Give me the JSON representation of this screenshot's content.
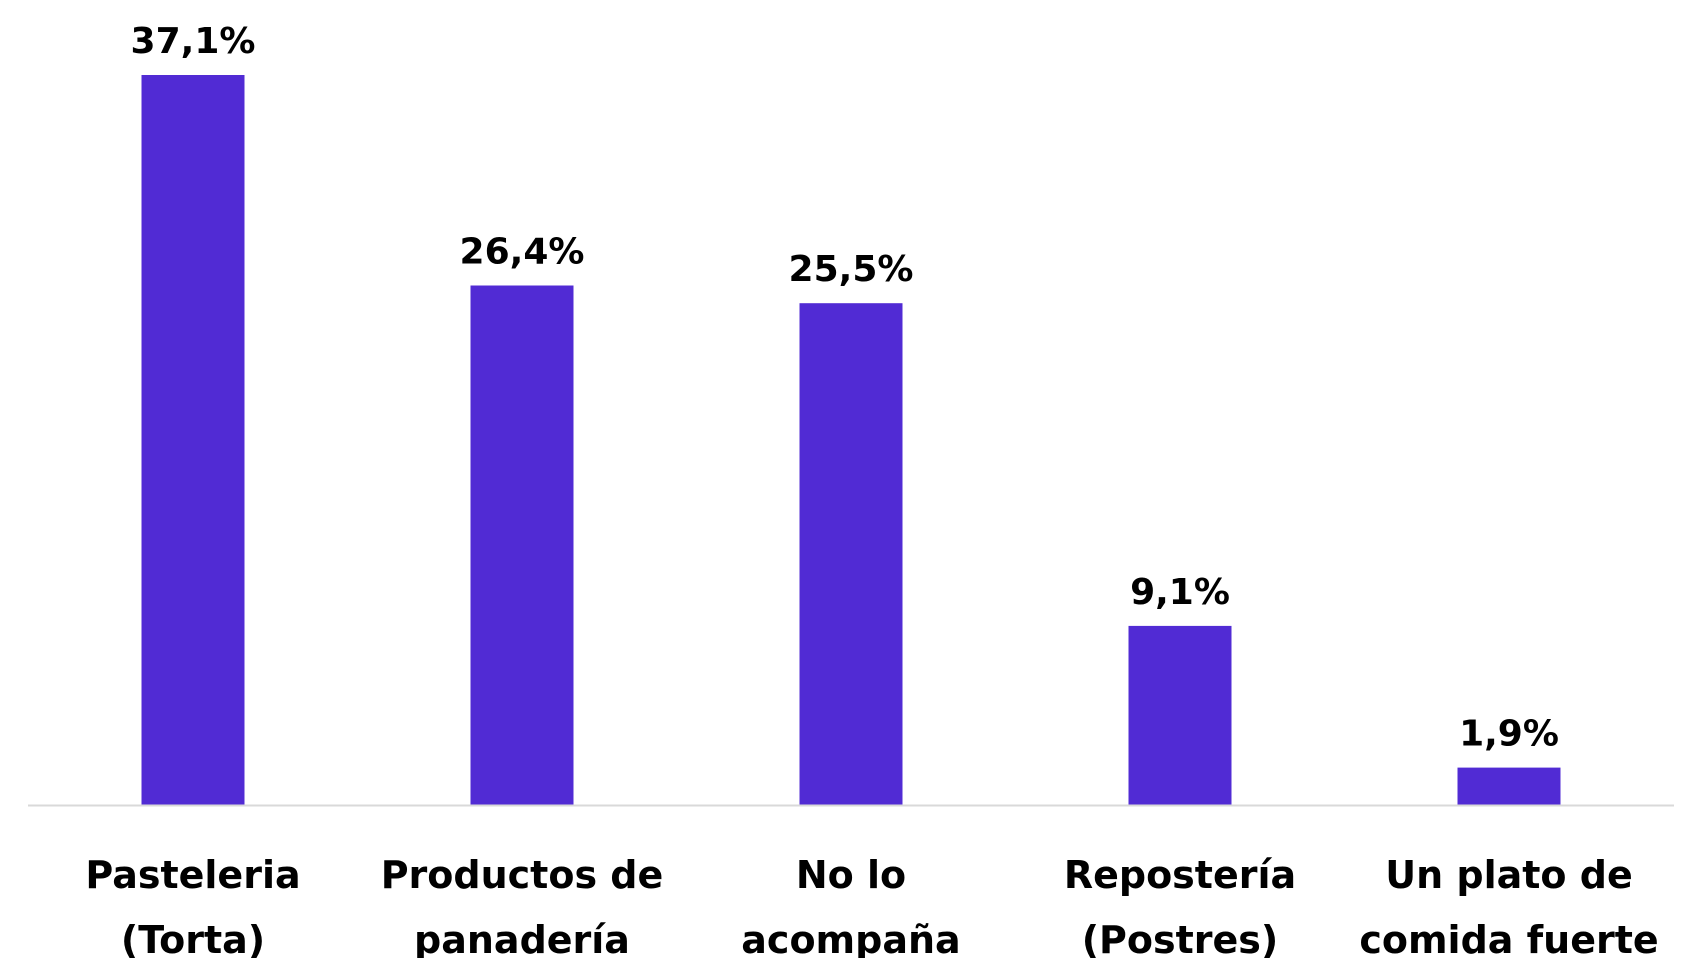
{
  "chart_data": {
    "type": "bar",
    "categories": [
      [
        "Pasteleria",
        "(Torta)"
      ],
      [
        "Productos de",
        "panadería"
      ],
      [
        "No lo",
        "acompaña"
      ],
      [
        "Repostería",
        "(Postres)"
      ],
      [
        "Un plato de",
        "comida fuerte"
      ]
    ],
    "values": [
      37.1,
      26.4,
      25.5,
      9.1,
      1.9
    ],
    "value_labels": [
      "37,1%",
      "26,4%",
      "25,5%",
      "9,1%",
      "1,9%"
    ],
    "title": "",
    "xlabel": "",
    "ylabel": "",
    "ylim": [
      0,
      37.1
    ],
    "grid": false,
    "legend": "none",
    "bar_color": "#512BD4",
    "axis_color": "#D9D9D9"
  }
}
